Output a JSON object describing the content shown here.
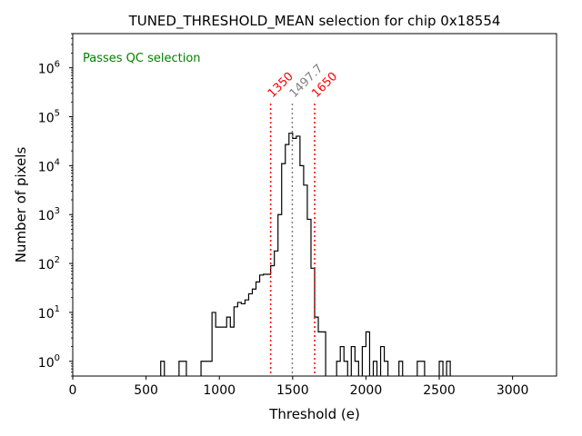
{
  "chart_data": {
    "type": "histogram",
    "title": "TUNED_THRESHOLD_MEAN selection for chip 0x18554",
    "xlabel": "Threshold (e)",
    "ylabel": "Number of pixels",
    "xlim": [
      0,
      3300
    ],
    "ylim": [
      0.5,
      5000000
    ],
    "yscale": "log",
    "xticks": [
      0,
      500,
      1000,
      1500,
      2000,
      2500,
      3000
    ],
    "yticks": [
      {
        "value": 1,
        "base": "10",
        "exp": "0"
      },
      {
        "value": 10,
        "base": "10",
        "exp": "1"
      },
      {
        "value": 100,
        "base": "10",
        "exp": "2"
      },
      {
        "value": 1000,
        "base": "10",
        "exp": "3"
      },
      {
        "value": 10000,
        "base": "10",
        "exp": "4"
      },
      {
        "value": 100000,
        "base": "10",
        "exp": "5"
      },
      {
        "value": 1000000,
        "base": "10",
        "exp": "6"
      }
    ],
    "status_text": "Passes QC selection",
    "status_color": "#008000",
    "bins": [
      [
        600,
        625,
        1
      ],
      [
        625,
        725,
        0
      ],
      [
        725,
        775,
        1
      ],
      [
        775,
        875,
        0
      ],
      [
        875,
        950,
        1
      ],
      [
        950,
        975,
        10
      ],
      [
        975,
        1050,
        5
      ],
      [
        1050,
        1075,
        8
      ],
      [
        1075,
        1100,
        5
      ],
      [
        1100,
        1125,
        13
      ],
      [
        1125,
        1150,
        16
      ],
      [
        1150,
        1175,
        15
      ],
      [
        1175,
        1200,
        18
      ],
      [
        1200,
        1225,
        24
      ],
      [
        1225,
        1250,
        30
      ],
      [
        1250,
        1275,
        42
      ],
      [
        1275,
        1300,
        58
      ],
      [
        1300,
        1350,
        60
      ],
      [
        1350,
        1375,
        90
      ],
      [
        1375,
        1400,
        180
      ],
      [
        1400,
        1425,
        1000
      ],
      [
        1425,
        1450,
        11000
      ],
      [
        1450,
        1475,
        27000
      ],
      [
        1475,
        1500,
        46000
      ],
      [
        1500,
        1525,
        36000
      ],
      [
        1525,
        1550,
        40000
      ],
      [
        1550,
        1575,
        10000
      ],
      [
        1575,
        1600,
        4000
      ],
      [
        1600,
        1625,
        800
      ],
      [
        1625,
        1650,
        80
      ],
      [
        1650,
        1675,
        8
      ],
      [
        1675,
        1725,
        4
      ],
      [
        1725,
        1800,
        0
      ],
      [
        1800,
        1825,
        1
      ],
      [
        1825,
        1850,
        2
      ],
      [
        1850,
        1875,
        1
      ],
      [
        1875,
        1900,
        0
      ],
      [
        1900,
        1925,
        2
      ],
      [
        1925,
        1950,
        1
      ],
      [
        1950,
        1975,
        0
      ],
      [
        1975,
        2000,
        2
      ],
      [
        2000,
        2025,
        4
      ],
      [
        2025,
        2050,
        0
      ],
      [
        2050,
        2075,
        1
      ],
      [
        2075,
        2100,
        0
      ],
      [
        2100,
        2125,
        2
      ],
      [
        2125,
        2150,
        1
      ],
      [
        2150,
        2225,
        0
      ],
      [
        2225,
        2250,
        1
      ],
      [
        2250,
        2350,
        0
      ],
      [
        2350,
        2400,
        1
      ],
      [
        2400,
        2500,
        0
      ],
      [
        2500,
        2525,
        1
      ],
      [
        2525,
        2550,
        0
      ],
      [
        2550,
        2575,
        1
      ]
    ],
    "vlines": [
      {
        "x": 1350,
        "label": "1350",
        "color": "#ff0000"
      },
      {
        "x": 1497.7,
        "label": "1497.7",
        "color": "#808080"
      },
      {
        "x": 1650,
        "label": "1650",
        "color": "#ff0000"
      }
    ],
    "line_color": "#000000"
  }
}
